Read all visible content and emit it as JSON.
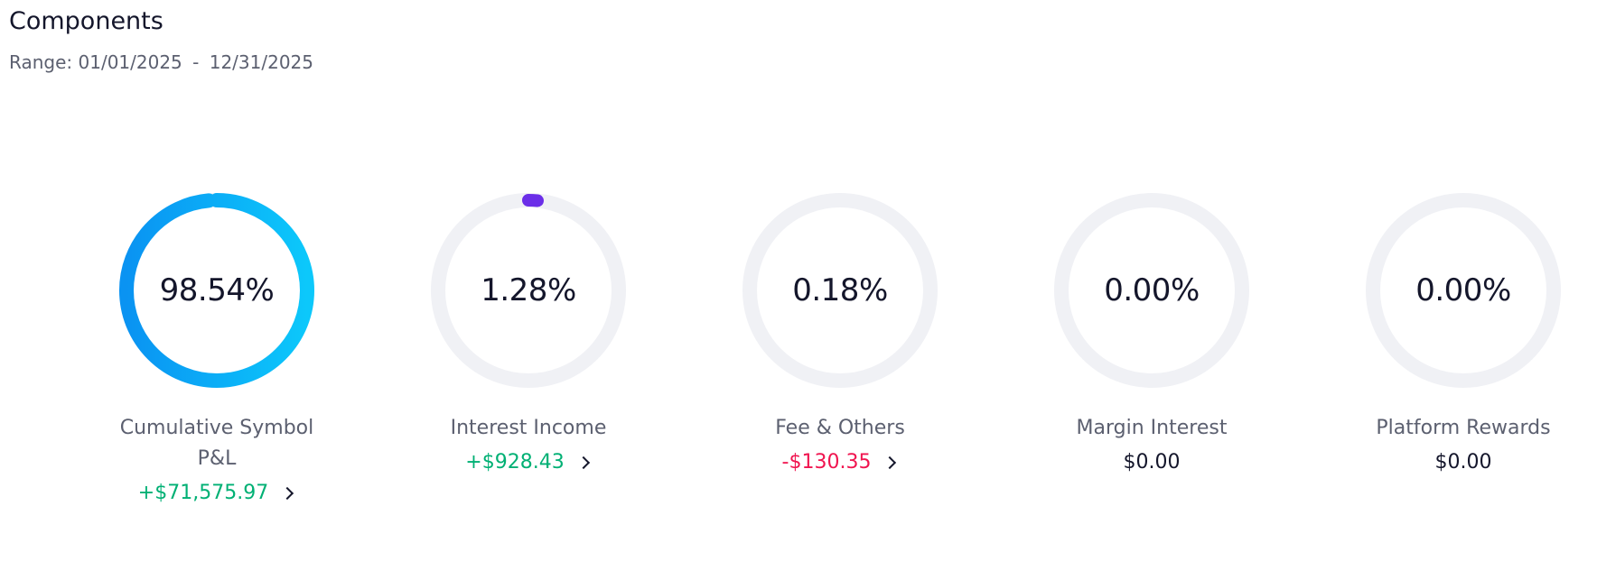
{
  "header": {
    "title": "Components",
    "range_label": "Range:",
    "range_start": "01/01/2025",
    "range_separator": "-",
    "range_end": "12/31/2025"
  },
  "colors": {
    "track": "#f0f1f5",
    "primary_gradient": [
      "#0a93f2",
      "#0cc8fb"
    ],
    "interest_marker": "#6b2ee8",
    "positive": "#00b074",
    "negative": "#f0144f",
    "neutral": "#14162b"
  },
  "components": [
    {
      "label": "Cumulative Symbol P&L",
      "percent_text": "98.54%",
      "percent": 98.54,
      "amount": "+$71,575.97",
      "sign": "positive",
      "has_detail": true,
      "icon": "chevron-right-icon"
    },
    {
      "label": "Interest Income",
      "percent_text": "1.28%",
      "percent": 1.28,
      "amount": "+$928.43",
      "sign": "positive",
      "has_detail": true,
      "icon": "chevron-right-icon"
    },
    {
      "label": "Fee & Others",
      "percent_text": "0.18%",
      "percent": 0.18,
      "amount": "-$130.35",
      "sign": "negative",
      "has_detail": true,
      "icon": "chevron-right-icon"
    },
    {
      "label": "Margin Interest",
      "percent_text": "0.00%",
      "percent": 0,
      "amount": "$0.00",
      "sign": "zero",
      "has_detail": false
    },
    {
      "label": "Platform Rewards",
      "percent_text": "0.00%",
      "percent": 0,
      "amount": "$0.00",
      "sign": "zero",
      "has_detail": false
    }
  ]
}
